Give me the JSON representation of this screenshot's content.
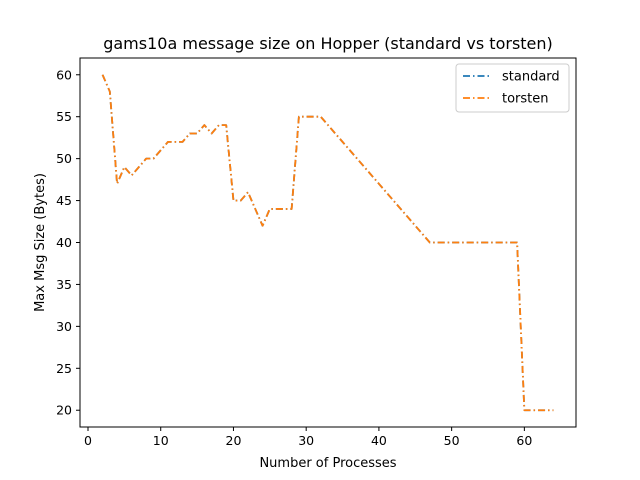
{
  "chart_data": {
    "type": "line",
    "title": "gams10a message size on Hopper (standard vs torsten)",
    "xlabel": "Number of Processes",
    "ylabel": "Max Msg Size (Bytes)",
    "xlim": [
      -1.1,
      67.1
    ],
    "ylim": [
      18,
      62
    ],
    "xticks": [
      0,
      10,
      20,
      30,
      40,
      50,
      60
    ],
    "yticks": [
      20,
      25,
      30,
      35,
      40,
      45,
      50,
      55,
      60
    ],
    "grid": false,
    "legend_position": "top-right",
    "x": [
      2,
      3,
      4,
      5,
      6,
      7,
      8,
      9,
      10,
      11,
      12,
      13,
      14,
      15,
      16,
      17,
      18,
      19,
      20,
      21,
      22,
      23,
      24,
      25,
      26,
      27,
      28,
      29,
      30,
      31,
      32,
      33,
      34,
      35,
      36,
      37,
      38,
      39,
      40,
      41,
      42,
      43,
      44,
      45,
      46,
      47,
      48,
      49,
      50,
      51,
      52,
      53,
      54,
      55,
      56,
      57,
      58,
      59,
      60,
      61,
      62,
      63,
      64
    ],
    "series": [
      {
        "name": "standard",
        "color": "#1f77b4",
        "values": [
          60,
          58,
          47,
          49,
          48,
          49,
          50,
          50,
          51,
          52,
          52,
          52,
          53,
          53,
          54,
          53,
          54,
          54,
          45,
          45,
          46,
          44,
          42,
          44,
          44,
          44,
          44,
          55,
          55,
          55,
          55,
          54,
          53,
          52,
          51,
          50,
          49,
          48,
          47,
          46,
          45,
          44,
          43,
          42,
          41,
          40,
          40,
          40,
          40,
          40,
          40,
          40,
          40,
          40,
          40,
          40,
          40,
          40,
          20,
          20,
          20,
          20,
          20
        ]
      },
      {
        "name": "torsten",
        "color": "#ff7f0e",
        "values": [
          60,
          58,
          47,
          49,
          48,
          49,
          50,
          50,
          51,
          52,
          52,
          52,
          53,
          53,
          54,
          53,
          54,
          54,
          45,
          45,
          46,
          44,
          42,
          44,
          44,
          44,
          44,
          55,
          55,
          55,
          55,
          54,
          53,
          52,
          51,
          50,
          49,
          48,
          47,
          46,
          45,
          44,
          43,
          42,
          41,
          40,
          40,
          40,
          40,
          40,
          40,
          40,
          40,
          40,
          40,
          40,
          40,
          40,
          20,
          20,
          20,
          20,
          20
        ]
      }
    ]
  }
}
